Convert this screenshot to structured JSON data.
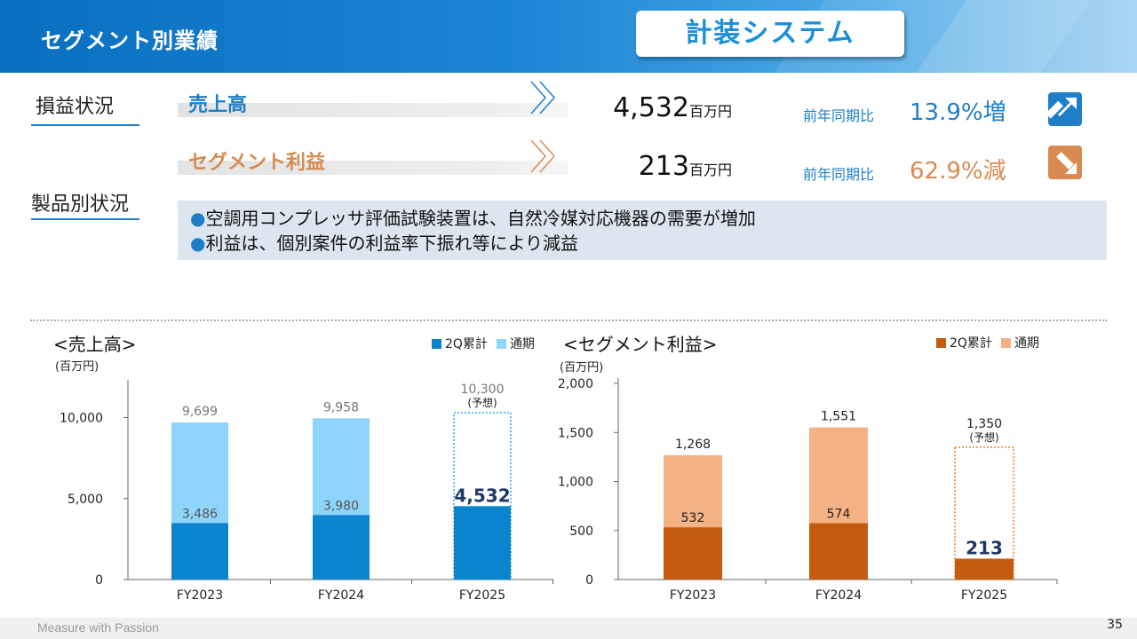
{
  "header": {
    "title": "セグメント別業績",
    "segment": "計装システム"
  },
  "sections": {
    "pl": "損益状況",
    "product": "製品別状況"
  },
  "metrics": [
    {
      "label": "売上高",
      "value": "4,532",
      "unit": "百万円",
      "yoy_label": "前年同期比",
      "yoy_value": "13.9%増",
      "direction": "up",
      "color": "#1e7fc8"
    },
    {
      "label": "セグメント利益",
      "value": "213",
      "unit": "百万円",
      "yoy_label": "前年同期比",
      "yoy_value": "62.9%減",
      "direction": "down",
      "color": "#d98a52"
    }
  ],
  "comments": [
    "空調用コンプレッサ評価試験装置は、自然冷媒対応機器の需要が増加",
    "利益は、個別案件の利益率下振れ等により減益"
  ],
  "chart_data": [
    {
      "type": "bar",
      "title": "<売上高>",
      "unit": "(百万円)",
      "categories": [
        "FY2023",
        "FY2024",
        "FY2025"
      ],
      "series": [
        {
          "name": "2Q累計",
          "values": [
            3486,
            3980,
            4532
          ],
          "color": "#0a84cc"
        },
        {
          "name": "通期",
          "values": [
            9699,
            9958,
            10300
          ],
          "color": "#8fd4fa"
        }
      ],
      "value_labels_2q": [
        "3,486",
        "3,980",
        "4,532"
      ],
      "value_labels_full": [
        "9,699",
        "9,958",
        "10,300"
      ],
      "forecast_label": "(予想)",
      "ylim": [
        0,
        12000
      ],
      "yticks": [
        0,
        5000,
        10000
      ],
      "ytick_labels": [
        "0",
        "5,000",
        "10,000"
      ],
      "forecast_index": 2
    },
    {
      "type": "bar",
      "title": "<セグメント利益>",
      "unit": "(百万円)",
      "categories": [
        "FY2023",
        "FY2024",
        "FY2025"
      ],
      "series": [
        {
          "name": "2Q累計",
          "values": [
            532,
            574,
            213
          ],
          "color": "#c55a11"
        },
        {
          "name": "通期",
          "values": [
            1268,
            1551,
            1350
          ],
          "color": "#f4b183"
        }
      ],
      "value_labels_2q": [
        "532",
        "574",
        "213"
      ],
      "value_labels_full": [
        "1,268",
        "1,551",
        "1,350"
      ],
      "forecast_label": "(予想)",
      "ylim": [
        0,
        2000
      ],
      "yticks": [
        0,
        500,
        1000,
        1500,
        2000
      ],
      "ytick_labels": [
        "0",
        "500",
        "1,000",
        "1,500",
        "2,000"
      ],
      "forecast_index": 2
    }
  ],
  "footer": {
    "tagline": "Measure with Passion",
    "page": "35"
  }
}
